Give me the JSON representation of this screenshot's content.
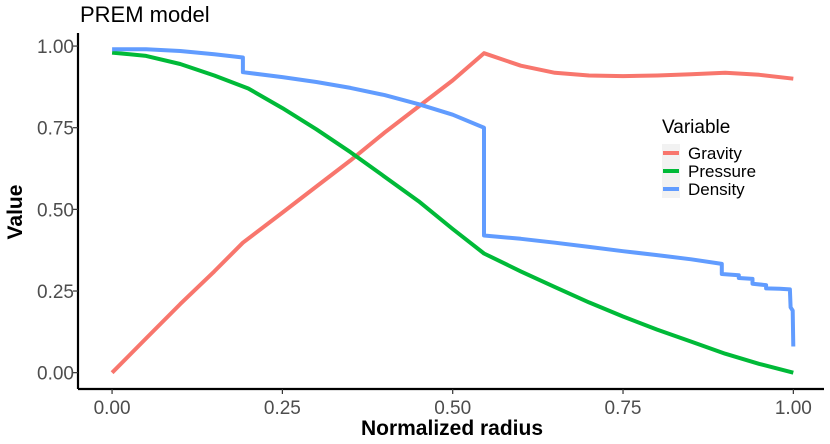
{
  "chart_data": {
    "type": "line",
    "title": "PREM model",
    "xlabel": "Normalized radius",
    "ylabel": "Value",
    "xlim": [
      -0.05,
      1.045
    ],
    "ylim": [
      -0.05,
      1.04
    ],
    "x_ticks": [
      0.0,
      0.25,
      0.5,
      0.75,
      1.0
    ],
    "x_tick_labels": [
      "0.00",
      "0.25",
      "0.50",
      "0.75",
      "1.00"
    ],
    "y_ticks": [
      0.0,
      0.25,
      0.5,
      0.75,
      1.0
    ],
    "y_tick_labels": [
      "0.00",
      "0.25",
      "0.50",
      "0.75",
      "1.00"
    ],
    "grid": false,
    "legend": {
      "title": "Variable",
      "placement": "right"
    },
    "series": [
      {
        "name": "Gravity",
        "color": "#F8766D",
        "points": [
          [
            0.0,
            0.0
          ],
          [
            0.05,
            0.105
          ],
          [
            0.1,
            0.21
          ],
          [
            0.15,
            0.31
          ],
          [
            0.192,
            0.398
          ],
          [
            0.25,
            0.49
          ],
          [
            0.3,
            0.57
          ],
          [
            0.35,
            0.65
          ],
          [
            0.4,
            0.735
          ],
          [
            0.45,
            0.815
          ],
          [
            0.5,
            0.895
          ],
          [
            0.546,
            0.978
          ],
          [
            0.6,
            0.94
          ],
          [
            0.65,
            0.918
          ],
          [
            0.7,
            0.91
          ],
          [
            0.75,
            0.908
          ],
          [
            0.8,
            0.91
          ],
          [
            0.85,
            0.914
          ],
          [
            0.9,
            0.918
          ],
          [
            0.95,
            0.912
          ],
          [
            1.0,
            0.9
          ]
        ]
      },
      {
        "name": "Pressure",
        "color": "#00BA38",
        "points": [
          [
            0.0,
            0.98
          ],
          [
            0.05,
            0.97
          ],
          [
            0.1,
            0.945
          ],
          [
            0.15,
            0.91
          ],
          [
            0.2,
            0.87
          ],
          [
            0.25,
            0.81
          ],
          [
            0.3,
            0.745
          ],
          [
            0.35,
            0.675
          ],
          [
            0.4,
            0.6
          ],
          [
            0.45,
            0.525
          ],
          [
            0.5,
            0.44
          ],
          [
            0.546,
            0.365
          ],
          [
            0.6,
            0.31
          ],
          [
            0.65,
            0.262
          ],
          [
            0.7,
            0.215
          ],
          [
            0.75,
            0.172
          ],
          [
            0.8,
            0.132
          ],
          [
            0.85,
            0.095
          ],
          [
            0.9,
            0.058
          ],
          [
            0.95,
            0.027
          ],
          [
            1.0,
            0.0
          ]
        ]
      },
      {
        "name": "Density",
        "color": "#619CFF",
        "points": [
          [
            0.0,
            0.99
          ],
          [
            0.05,
            0.99
          ],
          [
            0.1,
            0.985
          ],
          [
            0.15,
            0.975
          ],
          [
            0.192,
            0.965
          ],
          [
            0.192,
            0.92
          ],
          [
            0.25,
            0.905
          ],
          [
            0.3,
            0.89
          ],
          [
            0.35,
            0.872
          ],
          [
            0.4,
            0.85
          ],
          [
            0.45,
            0.822
          ],
          [
            0.5,
            0.79
          ],
          [
            0.546,
            0.75
          ],
          [
            0.546,
            0.42
          ],
          [
            0.6,
            0.41
          ],
          [
            0.65,
            0.398
          ],
          [
            0.7,
            0.385
          ],
          [
            0.75,
            0.372
          ],
          [
            0.8,
            0.36
          ],
          [
            0.85,
            0.347
          ],
          [
            0.895,
            0.333
          ],
          [
            0.895,
            0.302
          ],
          [
            0.92,
            0.298
          ],
          [
            0.92,
            0.29
          ],
          [
            0.94,
            0.287
          ],
          [
            0.94,
            0.272
          ],
          [
            0.96,
            0.268
          ],
          [
            0.96,
            0.258
          ],
          [
            0.98,
            0.257
          ],
          [
            0.995,
            0.255
          ],
          [
            0.996,
            0.2
          ],
          [
            0.999,
            0.19
          ],
          [
            1.0,
            0.08
          ]
        ]
      }
    ]
  }
}
